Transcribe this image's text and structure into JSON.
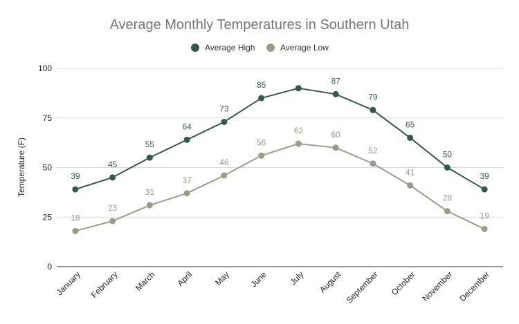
{
  "chart_data": {
    "type": "line",
    "title": "Average Monthly Temperatures in Southern Utah",
    "xlabel": "",
    "ylabel": "Temperature (F)",
    "categories": [
      "January",
      "February",
      "March",
      "April",
      "May",
      "June",
      "July",
      "August",
      "September",
      "October",
      "November",
      "December"
    ],
    "ylim": [
      0,
      100
    ],
    "yticks": [
      "0",
      "25",
      "50",
      "75",
      "100"
    ],
    "grid": true,
    "legend_position": "top",
    "series": [
      {
        "name": "Average High",
        "color": "#34594a",
        "values": [
          39,
          45,
          55,
          64,
          73,
          85,
          90,
          87,
          79,
          65,
          50,
          39
        ],
        "labels": [
          "39",
          "45",
          "55",
          "64",
          "73",
          "85",
          "",
          "87",
          "79",
          "65",
          "50",
          "39"
        ]
      },
      {
        "name": "Average Low",
        "color": "#9c9a88",
        "values": [
          18,
          23,
          31,
          37,
          46,
          56,
          62,
          60,
          52,
          41,
          28,
          19
        ],
        "labels": [
          "18",
          "23",
          "31",
          "37",
          "46",
          "56",
          "62",
          "60",
          "52",
          "41",
          "28",
          "19"
        ]
      }
    ]
  }
}
